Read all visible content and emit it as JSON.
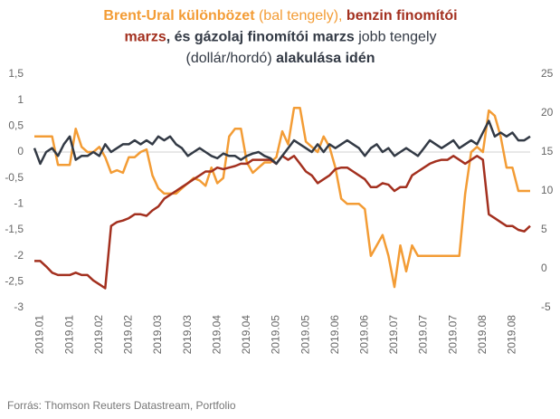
{
  "chart_data": {
    "type": "line",
    "title_lines": [
      [
        {
          "text": "Brent-Ural különbözet",
          "color": "#f39c35",
          "bold": true
        },
        {
          "text": " (bal tengely), ",
          "color": "#f39c35",
          "bold": false
        },
        {
          "text": "benzin finomítói",
          "color": "#a3301f",
          "bold": true
        }
      ],
      [
        {
          "text": "marzs",
          "color": "#a3301f",
          "bold": true
        },
        {
          "text": ", és gázolaj finomítói marzs ",
          "color": "#333a45",
          "bold": true
        },
        {
          "text": "jobb tengely",
          "color": "#333a45",
          "bold": false
        }
      ],
      [
        {
          "text": "(dollár/hordó) ",
          "color": "#333a45",
          "bold": false
        },
        {
          "text": "alakulása idén",
          "color": "#333a45",
          "bold": true
        }
      ]
    ],
    "source": "Forrás: Thomson Reuters Datastream, Portfolio",
    "categories": [
      null,
      "2019.01",
      null,
      null,
      null,
      null,
      "2019.01",
      null,
      null,
      null,
      null,
      "2019.02",
      null,
      null,
      null,
      null,
      "2019.02",
      null,
      null,
      null,
      null,
      "2019.03",
      null,
      null,
      null,
      null,
      "2019.03",
      null,
      null,
      null,
      null,
      "2019.04",
      null,
      null,
      null,
      null,
      "2019.04",
      null,
      null,
      null,
      null,
      "2019.05",
      null,
      null,
      null,
      null,
      "2019.05",
      null,
      null,
      null,
      null,
      "2019.06",
      null,
      null,
      null,
      null,
      "2019.06",
      null,
      null,
      null,
      null,
      "2019.07",
      null,
      null,
      null,
      null,
      "2019.07",
      null,
      null,
      null,
      null,
      "2019.07",
      null,
      null,
      null,
      null,
      "2019.08",
      null,
      null,
      null,
      null,
      "2019.08",
      null,
      null,
      null
    ],
    "ylim": [
      -3,
      1.5
    ],
    "yticks": [
      {
        "value": 1.5,
        "label": "1,5"
      },
      1,
      {
        "value": 0.5,
        "label": "0,5"
      },
      0,
      {
        "value": -0.5,
        "label": "-0,5"
      },
      -1,
      {
        "value": -1.5,
        "label": "-1,5"
      },
      -2,
      {
        "value": -2.5,
        "label": "-2,5"
      },
      -3
    ],
    "y2lim": [
      -5,
      25
    ],
    "y2ticks": [
      25,
      20,
      15,
      10,
      5,
      0,
      -5
    ],
    "series": [
      {
        "name": "Brent-Ural különbözet",
        "color": "#f39c35",
        "axis": "y",
        "values": [
          0.3,
          0.3,
          0.3,
          0.3,
          -0.25,
          -0.25,
          -0.25,
          0.45,
          0.1,
          0.0,
          0.0,
          0.1,
          -0.1,
          -0.4,
          -0.35,
          -0.4,
          -0.1,
          -0.1,
          0.0,
          0.05,
          -0.45,
          -0.7,
          -0.8,
          -0.8,
          -0.8,
          -0.7,
          -0.6,
          -0.5,
          -0.55,
          -0.65,
          -0.3,
          -0.6,
          -0.5,
          0.3,
          0.45,
          0.45,
          -0.2,
          -0.4,
          -0.3,
          -0.2,
          -0.2,
          -0.1,
          0.4,
          0.15,
          0.85,
          0.85,
          0.2,
          0.1,
          0.0,
          0.3,
          0.1,
          -0.3,
          -0.9,
          -1.0,
          -1.0,
          -1.0,
          -1.1,
          -2.0,
          -1.8,
          -1.6,
          -2.0,
          -2.6,
          -1.8,
          -2.3,
          -1.8,
          -2.0,
          -2.0,
          -2.0,
          -2.0,
          -2.0,
          -2.0,
          -2.0,
          -2.0,
          -0.8,
          0.0,
          0.1,
          0.0,
          0.8,
          0.7,
          0.3,
          -0.3,
          -0.3,
          -0.75,
          -0.75,
          -0.75
        ]
      },
      {
        "name": "benzin finomítói marzs",
        "color": "#a3301f",
        "axis": "y2",
        "values": [
          1.0,
          1.0,
          0.3,
          -0.5,
          -0.8,
          -0.8,
          -0.8,
          -0.5,
          -0.8,
          -0.8,
          -1.5,
          -2.0,
          -2.5,
          5.5,
          6.0,
          6.2,
          6.5,
          7.0,
          7.0,
          6.8,
          7.5,
          8.0,
          9.0,
          9.5,
          10.0,
          10.5,
          11.0,
          11.5,
          12.0,
          12.5,
          12.5,
          13.0,
          12.8,
          13.0,
          13.2,
          13.5,
          13.5,
          14.0,
          14.0,
          14.0,
          14.0,
          13.5,
          14.5,
          14.0,
          14.5,
          13.5,
          12.5,
          12.0,
          11.0,
          11.5,
          12.0,
          12.8,
          13.0,
          13.0,
          12.5,
          12.0,
          11.5,
          10.5,
          10.5,
          11.0,
          10.8,
          10.0,
          10.5,
          10.5,
          12.0,
          12.5,
          13.0,
          13.5,
          13.8,
          14.0,
          14.0,
          14.5,
          14.0,
          13.5,
          14.0,
          14.5,
          14.0,
          7.0,
          6.5,
          6.0,
          5.5,
          5.5,
          5.0,
          4.8,
          5.5
        ]
      },
      {
        "name": "gázolaj finomítói marzs",
        "color": "#333a45",
        "axis": "y2",
        "values": [
          15.5,
          13.5,
          15,
          15.5,
          14.5,
          16,
          17,
          14,
          14.5,
          14.5,
          15,
          14.5,
          16,
          15,
          15.5,
          16,
          16,
          16.5,
          16,
          16.5,
          16,
          17,
          16.5,
          17,
          16,
          15.5,
          14.5,
          15,
          15.5,
          15,
          14.5,
          14.2,
          14.8,
          14.5,
          14.5,
          14,
          14.5,
          14.8,
          15,
          14.5,
          14.2,
          13.5,
          14.5,
          15.5,
          16.5,
          16,
          15.5,
          15,
          16,
          15,
          16,
          15.5,
          16,
          16.5,
          16,
          15.5,
          14.5,
          15.5,
          16,
          15,
          15.5,
          14.5,
          15,
          15.5,
          15,
          14.5,
          15.5,
          16.5,
          16,
          15.5,
          16,
          16.5,
          15.5,
          16,
          16.5,
          16,
          17.5,
          19,
          17,
          17.5,
          17,
          17.5,
          16.5,
          16.5,
          17
        ]
      }
    ]
  }
}
